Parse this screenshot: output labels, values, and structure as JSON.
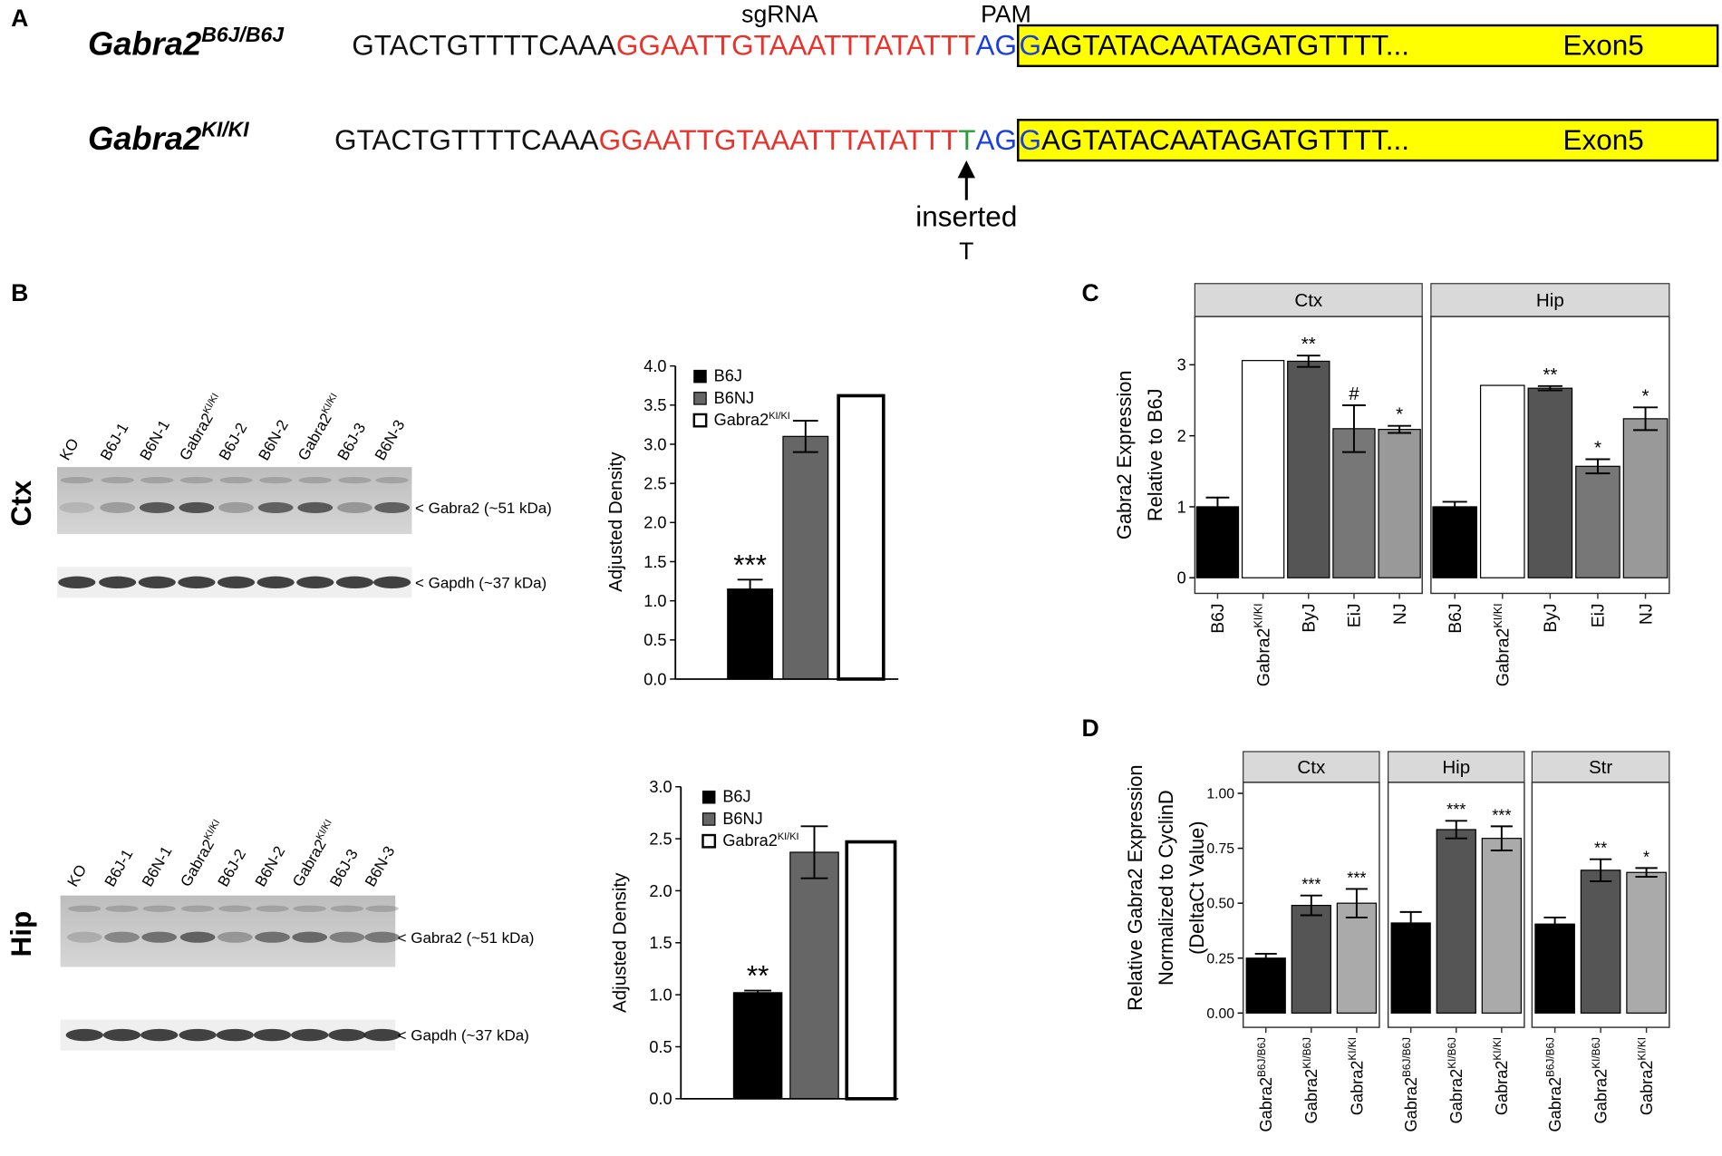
{
  "panel_a": {
    "label": "A",
    "sgrna": "sgRNA",
    "pam": "PAM",
    "insert_label": "inserted",
    "insert_base": "T",
    "rows": [
      {
        "gene": "Gabra2",
        "genotype": "B6J/B6J",
        "segments": [
          {
            "text": "GTACTGTTTTCAAA",
            "color": "#111111"
          },
          {
            "text": "GGAATTGTAAATTTATATTT",
            "color": "#e8322a"
          },
          {
            "text": "AG",
            "color": "#1a3fe0"
          }
        ],
        "exon_start": "G",
        "exon_start_color": "#1a3fe0",
        "exon_seq": "AGTATACAATAGATGTTTT...",
        "exon_label": "Exon5"
      },
      {
        "gene": "Gabra2",
        "genotype": "KI/KI",
        "segments": [
          {
            "text": "GTACTGTTTTCAAA",
            "color": "#111111"
          },
          {
            "text": "GGAATTGTAAATTTATATTT",
            "color": "#e8322a"
          },
          {
            "text": "T",
            "color": "#2a9d3a"
          },
          {
            "text": "AG",
            "color": "#1a3fe0"
          }
        ],
        "exon_start": "G",
        "exon_start_color": "#1a3fe0",
        "exon_seq": "AGTATACAATAGATGTTTT...",
        "exon_label": "Exon5"
      }
    ]
  },
  "panel_b": {
    "label": "B",
    "regions": [
      {
        "name": "Ctx",
        "lanes": [
          "KO",
          "B6J-1",
          "B6N-1",
          "Gabra2",
          "B6J-2",
          "B6N-2",
          "Gabra2",
          "B6J-3",
          "B6N-3"
        ],
        "lane_superscripts": [
          null,
          null,
          null,
          "KI/KI",
          null,
          null,
          "KI/KI",
          null,
          null
        ],
        "bands": [
          "< Gabra2 (~51 kDa)",
          "< Gapdh (~37 kDa)"
        ]
      },
      {
        "name": "Hip",
        "lanes": [
          "KO",
          "B6J-1",
          "B6N-1",
          "Gabra2",
          "B6J-2",
          "B6N-2",
          "Gabra2",
          "B6J-3",
          "B6N-3"
        ],
        "lane_superscripts": [
          null,
          null,
          null,
          "KI/KI",
          null,
          null,
          "KI/KI",
          null,
          null
        ],
        "bands": [
          "< Gabra2 (~51 kDa)",
          "< Gapdh (~37 kDa)"
        ]
      }
    ]
  },
  "chart_data": [
    {
      "type": "bar",
      "ylabel": [
        "Adjusted Density"
      ],
      "categories": [
        "B6J",
        "B6NJ",
        "Gabra2"
      ],
      "category_superscripts": [
        null,
        null,
        "KI/KI"
      ],
      "colors": [
        "#000000",
        "#666666",
        "#ffffff"
      ],
      "values": [
        1.15,
        3.1,
        3.62
      ],
      "errors": [
        0.12,
        0.2,
        null
      ],
      "annotations": [
        "***",
        null,
        null
      ],
      "ylim": [
        0,
        4
      ],
      "yticks": [
        {
          "value": 0,
          "label": "0.0"
        },
        0.5,
        {
          "value": 1,
          "label": "1.0"
        },
        1.5,
        {
          "value": 2,
          "label": "2.0"
        },
        2.5,
        {
          "value": 3,
          "label": "3.0"
        },
        3.5,
        {
          "value": 4,
          "label": "4.0"
        }
      ],
      "legend": "top-left"
    },
    {
      "type": "bar",
      "ylabel": [
        "Adjusted Density"
      ],
      "categories": [
        "B6J",
        "B6NJ",
        "Gabra2"
      ],
      "category_superscripts": [
        null,
        null,
        "KI/KI"
      ],
      "colors": [
        "#000000",
        "#666666",
        "#ffffff"
      ],
      "values": [
        1.02,
        2.37,
        2.47
      ],
      "errors": [
        0.02,
        0.25,
        null
      ],
      "annotations": [
        "**",
        null,
        null
      ],
      "ylim": [
        0,
        3
      ],
      "yticks": [
        {
          "value": 0,
          "label": "0.0"
        },
        0.5,
        {
          "value": 1,
          "label": "1.0"
        },
        1.5,
        {
          "value": 2,
          "label": "2.0"
        },
        2.5,
        {
          "value": 3,
          "label": "3.0"
        }
      ],
      "legend": "top-left"
    },
    {
      "type": "bar",
      "panel": "C",
      "ylabel": [
        "Gabra2 Expression",
        "Relative to B6J"
      ],
      "categories": [
        "B6J",
        "Gabra2",
        "ByJ",
        "EiJ",
        "NJ"
      ],
      "category_superscripts": [
        null,
        "KI/KI",
        null,
        null,
        null
      ],
      "colors": [
        "#000000",
        "#ffffff",
        "#555555",
        "#777777",
        "#999999"
      ],
      "ylim": [
        -0.22,
        3.68
      ],
      "yticks": [
        0,
        1,
        2,
        3
      ],
      "facets": [
        {
          "name": "Ctx",
          "values": [
            1.0,
            3.06,
            3.05,
            2.1,
            2.09
          ],
          "errors": [
            0.13,
            null,
            0.08,
            0.33,
            0.05
          ],
          "annotations": [
            null,
            null,
            "**",
            "#",
            "*"
          ]
        },
        {
          "name": "Hip",
          "values": [
            1.0,
            2.71,
            2.67,
            1.57,
            2.24
          ],
          "errors": [
            0.07,
            null,
            0.03,
            0.1,
            0.16
          ],
          "annotations": [
            null,
            null,
            "**",
            "*",
            "*"
          ]
        }
      ]
    },
    {
      "type": "bar",
      "panel": "D",
      "ylabel": [
        "Relative Gabra2 Expression",
        "Normalized to CyclinD",
        "(DeltaCt Value)"
      ],
      "categories": [
        "Gabra2",
        "Gabra2",
        "Gabra2"
      ],
      "category_superscripts": [
        "B6J/B6J",
        "KI/B6J",
        "KI/KI"
      ],
      "colors": [
        "#000000",
        "#555555",
        "#aaaaaa"
      ],
      "ylim": [
        -0.065,
        1.05
      ],
      "yticks": [
        {
          "value": 0,
          "label": "0.00"
        },
        0.25,
        {
          "value": 0.5,
          "label": "0.50"
        },
        0.75,
        {
          "value": 1,
          "label": "1.00"
        }
      ],
      "facets": [
        {
          "name": "Ctx",
          "values": [
            0.25,
            0.49,
            0.5
          ],
          "errors": [
            0.02,
            0.045,
            0.065
          ],
          "annotations": [
            null,
            "***",
            "***"
          ]
        },
        {
          "name": "Hip",
          "values": [
            0.41,
            0.835,
            0.795
          ],
          "errors": [
            0.05,
            0.04,
            0.055
          ],
          "annotations": [
            null,
            "***",
            "***"
          ]
        },
        {
          "name": "Str",
          "values": [
            0.405,
            0.65,
            0.64
          ],
          "errors": [
            0.03,
            0.05,
            0.02
          ],
          "annotations": [
            null,
            "**",
            "*"
          ]
        }
      ]
    }
  ]
}
